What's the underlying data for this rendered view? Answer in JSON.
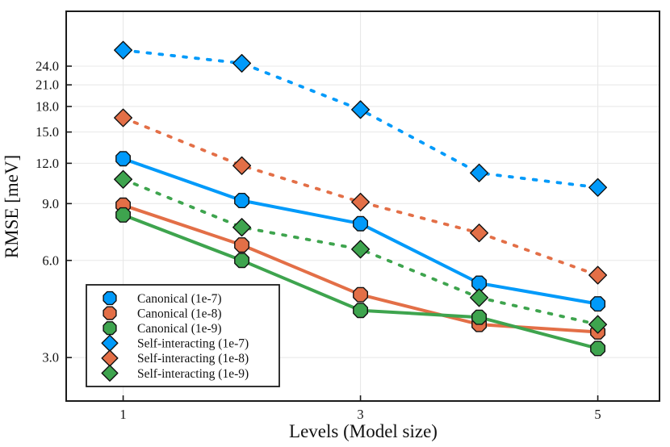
{
  "chart_data": {
    "type": "line",
    "title": "",
    "xlabel": "Levels (Model size)",
    "ylabel": "RMSE [meV]",
    "x": [
      1,
      2,
      3,
      4,
      5
    ],
    "xlim": [
      0.52,
      5.52
    ],
    "ylim": [
      2.2,
      35.5
    ],
    "yscale": "log",
    "grid": true,
    "legend_position": "bottom-left",
    "xticks": {
      "values": [
        1,
        3,
        5
      ],
      "labels": [
        "1",
        "3",
        "5"
      ]
    },
    "yticks": {
      "values": [
        3,
        6,
        9,
        12,
        15,
        18,
        21,
        24
      ],
      "labels": [
        "3.0",
        "6.0",
        "9.0",
        "12.0",
        "15.0",
        "18.0",
        "21.0",
        "24.0"
      ]
    },
    "series": [
      {
        "name": "Canonical (1e-7)",
        "color": "#009AFA",
        "marker": "circle",
        "line": "solid",
        "values": [
          12.4,
          9.2,
          7.8,
          5.1,
          4.4
        ]
      },
      {
        "name": "Canonical (1e-8)",
        "color": "#E36F47",
        "marker": "circle",
        "line": "solid",
        "values": [
          8.9,
          6.7,
          4.7,
          3.8,
          3.6
        ]
      },
      {
        "name": "Canonical (1e-9)",
        "color": "#3EA44E",
        "marker": "circle",
        "line": "solid",
        "values": [
          8.3,
          6.0,
          4.2,
          4.0,
          3.2
        ]
      },
      {
        "name": "Self-interacting (1e-7)",
        "color": "#009AFA",
        "marker": "diamond",
        "line": "dashed",
        "values": [
          26.9,
          24.5,
          17.6,
          11.2,
          10.1
        ]
      },
      {
        "name": "Self-interacting (1e-8)",
        "color": "#E36F47",
        "marker": "diamond",
        "line": "dashed",
        "values": [
          16.6,
          11.8,
          9.1,
          7.3,
          5.4
        ]
      },
      {
        "name": "Self-interacting (1e-9)",
        "color": "#3EA44E",
        "marker": "diamond",
        "line": "dashed",
        "values": [
          10.7,
          7.6,
          6.5,
          4.6,
          3.8
        ]
      }
    ]
  },
  "style_colors": {
    "frame": "#1b1b1b",
    "grid": "#e8e8e8",
    "marker_stroke": "#111111",
    "legend_border": "#1b1b1b",
    "legend_bg": "#ffffff"
  }
}
